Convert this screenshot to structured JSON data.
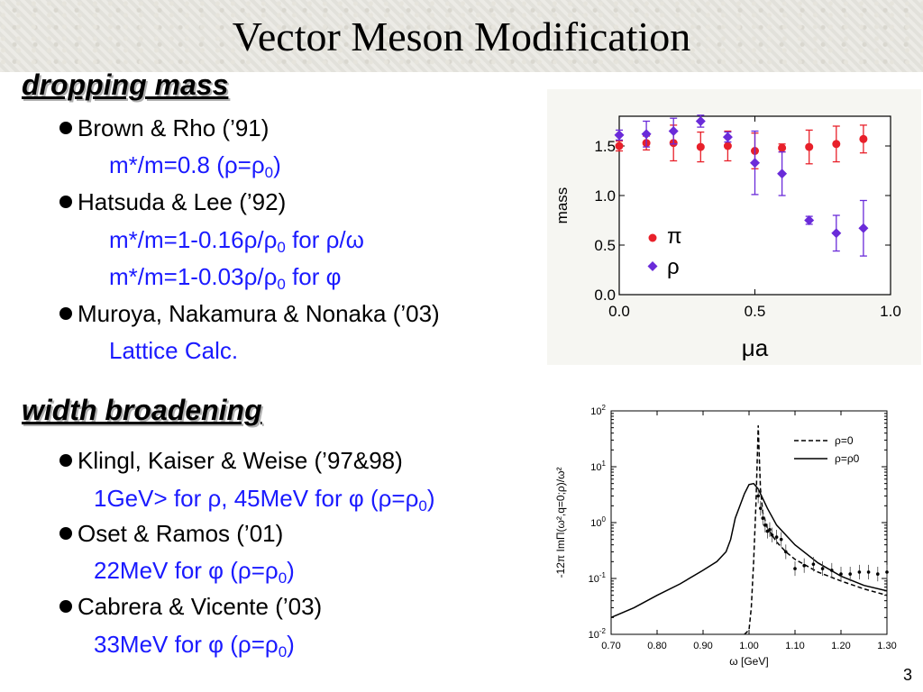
{
  "slide": {
    "title": "Vector Meson Modification",
    "page_number": "3"
  },
  "section1": {
    "heading": "dropping mass",
    "items": [
      {
        "author": "Brown & Rho (’91)",
        "detail": "m*/m=0.8 (ρ=ρ",
        "detail_sub": "0",
        "detail_end": ")"
      },
      {
        "author": "Hatsuda & Lee (’92)",
        "detail": "m*/m=1-0.16ρ/ρ",
        "detail_sub": "0",
        "detail_end": " for ρ/ω",
        "detail2": "m*/m=1-0.03ρ/ρ",
        "detail2_sub": "0",
        "detail2_end": " for φ"
      },
      {
        "author": "Muroya, Nakamura & Nonaka (’03)",
        "detail": "Lattice Calc."
      }
    ]
  },
  "section2": {
    "heading": "width broadening",
    "items": [
      {
        "author": "Klingl, Kaiser & Weise (’97&98)",
        "detail": "1GeV> for ρ, 45MeV for φ (ρ=ρ",
        "detail_sub": "0",
        "detail_end": ")"
      },
      {
        "author": "Oset & Ramos (’01)",
        "detail": "22MeV for φ (ρ=ρ",
        "detail_sub": "0",
        "detail_end": ")"
      },
      {
        "author": "Cabrera & Vicente (’03)",
        "detail": "33MeV for φ (ρ=ρ",
        "detail_sub": "0",
        "detail_end": ")"
      }
    ]
  },
  "colors": {
    "accent_blue": "#1a1aff",
    "pi_red": "#e8202a",
    "rho_blue": "#6a2bd9"
  },
  "chart_data": [
    {
      "type": "scatter",
      "xlabel": "μa",
      "ylabel": "mass",
      "xlim": [
        0.0,
        1.0
      ],
      "ylim": [
        0.0,
        1.8
      ],
      "xticks": [
        "0.0",
        "0.5",
        "1.0"
      ],
      "yticks": [
        "0.0",
        "0.5",
        "1.0",
        "1.5"
      ],
      "legend_position": "lower-left",
      "series": [
        {
          "name": "π",
          "marker": "circle",
          "x": [
            0.0,
            0.1,
            0.2,
            0.3,
            0.4,
            0.5,
            0.6,
            0.7,
            0.8,
            0.9
          ],
          "y": [
            1.5,
            1.53,
            1.53,
            1.49,
            1.5,
            1.45,
            1.48,
            1.49,
            1.52,
            1.57
          ],
          "err": [
            0.05,
            0.07,
            0.18,
            0.15,
            0.15,
            0.18,
            0.04,
            0.17,
            0.18,
            0.14
          ]
        },
        {
          "name": "ρ",
          "marker": "diamond",
          "x": [
            0.0,
            0.1,
            0.2,
            0.3,
            0.4,
            0.5,
            0.6,
            0.7,
            0.8,
            0.9
          ],
          "y": [
            1.61,
            1.62,
            1.65,
            1.75,
            1.59,
            1.33,
            1.22,
            0.75,
            0.62,
            0.67
          ],
          "err": [
            0.05,
            0.13,
            0.13,
            0.06,
            0.05,
            0.32,
            0.22,
            0.04,
            0.18,
            0.28
          ]
        }
      ]
    },
    {
      "type": "line",
      "xlabel": "ω [GeV]",
      "ylabel": "-12π ImΠ(ω²,q=0;ρ)/ω²",
      "xlim": [
        0.7,
        1.3
      ],
      "ylim_log10": [
        -2,
        2
      ],
      "yscale": "log",
      "xticks": [
        "0.70",
        "0.80",
        "0.90",
        "1.00",
        "1.10",
        "1.20",
        "1.30"
      ],
      "yticks": [
        "10-2",
        "10-1",
        "100",
        "101",
        "102"
      ],
      "legend_position": "top-right",
      "series": [
        {
          "name": "ρ=0",
          "style": "dashed",
          "x": [
            0.99,
            1.0,
            1.005,
            1.01,
            1.015,
            1.018,
            1.02,
            1.022,
            1.025,
            1.03,
            1.04,
            1.06,
            1.08,
            1.1,
            1.15,
            1.2,
            1.25,
            1.3
          ],
          "y": [
            0.01,
            0.012,
            0.03,
            0.2,
            2.0,
            15.0,
            55.0,
            18.0,
            4.0,
            1.5,
            0.8,
            0.45,
            0.3,
            0.22,
            0.13,
            0.09,
            0.065,
            0.05
          ]
        },
        {
          "name": "ρ=ρ0",
          "style": "solid",
          "x": [
            0.7,
            0.75,
            0.8,
            0.85,
            0.9,
            0.93,
            0.95,
            0.96,
            0.97,
            0.99,
            1.0,
            1.01,
            1.02,
            1.04,
            1.06,
            1.1,
            1.15,
            1.2,
            1.25,
            1.3
          ],
          "y": [
            0.02,
            0.03,
            0.05,
            0.08,
            0.14,
            0.2,
            0.3,
            0.5,
            1.2,
            3.3,
            4.8,
            5.0,
            4.0,
            1.8,
            0.9,
            0.4,
            0.19,
            0.11,
            0.075,
            0.06
          ]
        },
        {
          "name": "data",
          "style": "points",
          "x": [
            1.02,
            1.025,
            1.03,
            1.035,
            1.04,
            1.045,
            1.05,
            1.06,
            1.07,
            1.08,
            1.1,
            1.12,
            1.14,
            1.16,
            1.18,
            1.2,
            1.22,
            1.24,
            1.26,
            1.28,
            1.3
          ],
          "y": [
            3.0,
            1.8,
            1.2,
            0.9,
            0.7,
            0.75,
            0.6,
            0.55,
            0.5,
            0.3,
            0.15,
            0.17,
            0.18,
            0.15,
            0.14,
            0.12,
            0.12,
            0.13,
            0.13,
            0.12,
            0.13
          ]
        }
      ]
    }
  ]
}
